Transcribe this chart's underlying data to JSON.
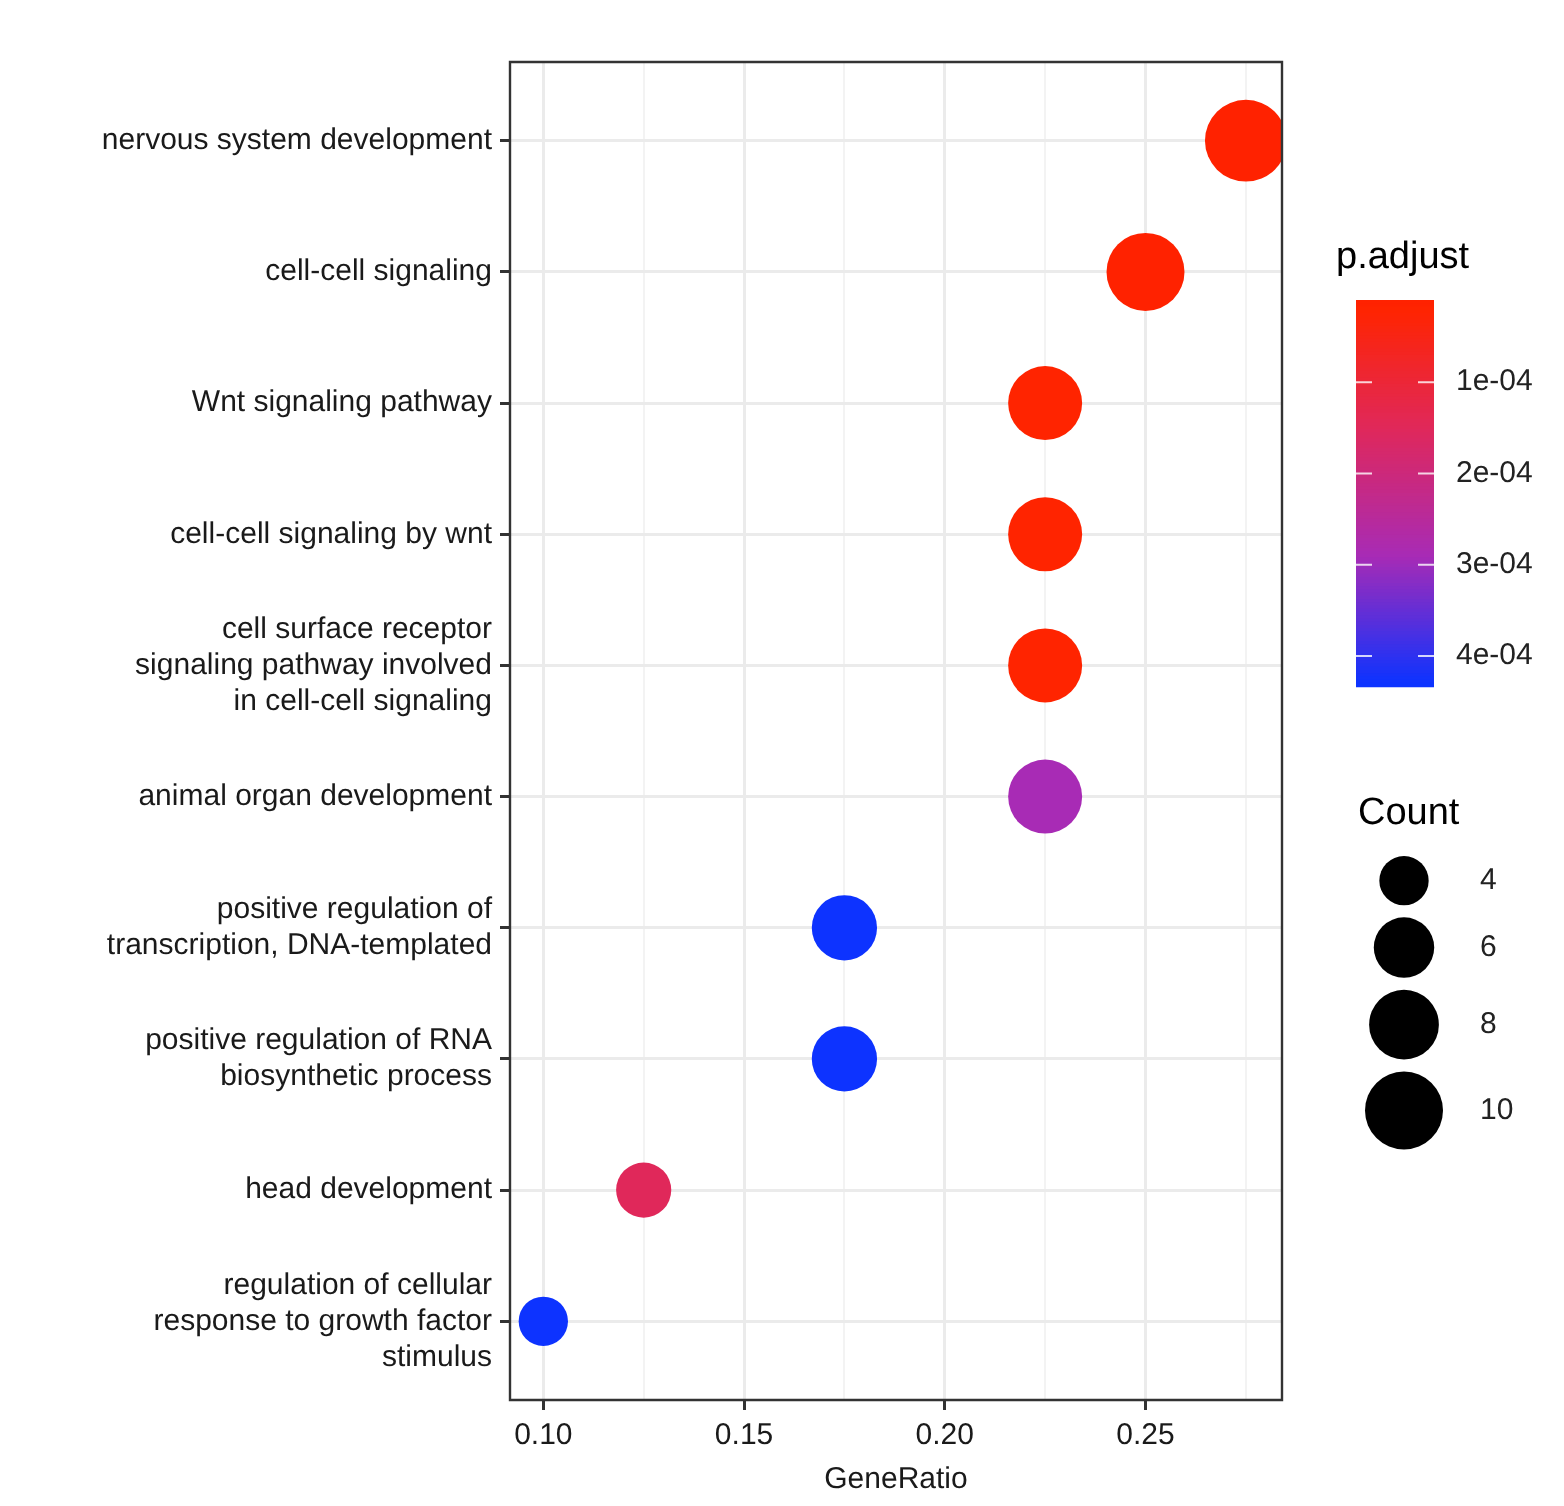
{
  "chart_data": {
    "type": "bubble",
    "orientation": "horizontal",
    "xlabel": "GeneRatio",
    "clabel": "p.adjust",
    "legend_title": "Count",
    "grid": true,
    "categories": [
      "nervous system development",
      "cell-cell signaling",
      "Wnt signaling pathway",
      "cell-cell signaling by wnt",
      "cell surface receptor signaling pathway involved in cell-cell signaling",
      "animal organ development",
      "positive regulation of transcription, DNA-templated",
      "positive regulation of RNA biosynthetic process",
      "head development",
      "regulation of cellular response to growth factor stimulus"
    ],
    "values": [
      0.275,
      0.25,
      0.225,
      0.225,
      0.225,
      0.225,
      0.175,
      0.175,
      0.125,
      0.1
    ],
    "sizes": [
      11,
      10,
      9,
      9,
      9,
      9,
      7,
      7,
      5,
      4
    ],
    "size_legend": [
      4,
      6,
      8,
      10
    ],
    "cvalues": [
      1.2e-05,
      1.5e-05,
      2e-05,
      2e-05,
      2e-05,
      0.00029,
      0.00043,
      0.00043,
      0.00015,
      0.00043
    ],
    "colors": [
      "#ff2200",
      "#ff2200",
      "#ff2400",
      "#ff2400",
      "#ff2400",
      "#a82bb5",
      "#0d33ff",
      "#0d33ff",
      "#e0285a",
      "#0d33ff"
    ],
    "clim": [
      1e-05,
      0.000433
    ],
    "cticks": [
      {
        "value": 0.0001,
        "label": "1e-04"
      },
      {
        "value": 0.0002,
        "label": "2e-04"
      },
      {
        "value": 0.0003,
        "label": "3e-04"
      },
      {
        "value": 0.0004,
        "label": "4e-04"
      }
    ],
    "xlim": [
      0.0917,
      0.284
    ],
    "xticks": [
      {
        "value": 0.1,
        "label": "0.10"
      },
      {
        "value": 0.125,
        "label": null
      },
      0.15,
      {
        "value": 0.175,
        "label": null
      },
      {
        "value": 0.2,
        "label": "0.20"
      },
      {
        "value": 0.225,
        "label": null
      },
      0.25,
      {
        "value": 0.275,
        "label": null
      }
    ]
  }
}
